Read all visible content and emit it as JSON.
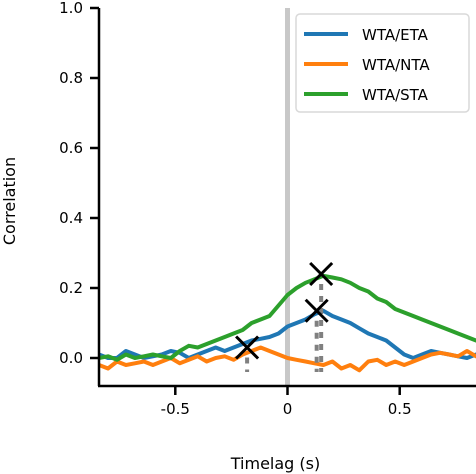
{
  "chart_data": {
    "type": "line",
    "title": "",
    "xlabel": "Timelag (s)",
    "ylabel": "Correlation",
    "xlim": [
      -0.84,
      0.84
    ],
    "ylim": [
      -0.08,
      1.0
    ],
    "xticks": [
      -0.5,
      0,
      0.5
    ],
    "xtick_labels": [
      "-0.5",
      "0",
      "0.5"
    ],
    "yticks": [
      0.0,
      0.2,
      0.4,
      0.6,
      0.8,
      1.0
    ],
    "ytick_labels": [
      "0.0",
      "0.2",
      "0.4",
      "0.6",
      "0.8",
      "1.0"
    ],
    "grid": false,
    "legend_position": "top-right",
    "zero_line": {
      "x": 0,
      "color": "#c8c8c8"
    },
    "series": [
      {
        "name": "WTA/ETA",
        "color": "#1f77b4",
        "x": [
          -0.84,
          -0.8,
          -0.76,
          -0.72,
          -0.68,
          -0.64,
          -0.6,
          -0.56,
          -0.52,
          -0.48,
          -0.44,
          -0.4,
          -0.36,
          -0.32,
          -0.28,
          -0.24,
          -0.2,
          -0.16,
          -0.12,
          -0.08,
          -0.04,
          0.0,
          0.04,
          0.08,
          0.12,
          0.16,
          0.2,
          0.24,
          0.28,
          0.32,
          0.36,
          0.4,
          0.44,
          0.48,
          0.52,
          0.56,
          0.6,
          0.64,
          0.68,
          0.72,
          0.76,
          0.8,
          0.84
        ],
        "y": [
          0.01,
          0.0,
          0.0,
          0.02,
          0.01,
          0.0,
          0.005,
          0.01,
          0.02,
          0.015,
          0.0,
          0.01,
          0.02,
          0.03,
          0.02,
          0.03,
          0.04,
          0.05,
          0.055,
          0.06,
          0.07,
          0.09,
          0.1,
          0.11,
          0.125,
          0.135,
          0.12,
          0.11,
          0.1,
          0.085,
          0.07,
          0.06,
          0.05,
          0.03,
          0.01,
          0.0,
          0.01,
          0.02,
          0.015,
          0.01,
          0.005,
          0.0,
          0.01
        ]
      },
      {
        "name": "WTA/NTA",
        "color": "#ff7f0e",
        "x": [
          -0.84,
          -0.8,
          -0.76,
          -0.72,
          -0.68,
          -0.64,
          -0.6,
          -0.56,
          -0.52,
          -0.48,
          -0.44,
          -0.4,
          -0.36,
          -0.32,
          -0.28,
          -0.24,
          -0.2,
          -0.16,
          -0.12,
          -0.08,
          -0.04,
          0.0,
          0.04,
          0.08,
          0.12,
          0.16,
          0.2,
          0.24,
          0.28,
          0.32,
          0.36,
          0.4,
          0.44,
          0.48,
          0.52,
          0.56,
          0.6,
          0.64,
          0.68,
          0.72,
          0.76,
          0.8,
          0.84
        ],
        "y": [
          -0.02,
          -0.03,
          -0.01,
          -0.02,
          -0.015,
          -0.01,
          -0.02,
          -0.01,
          0.0,
          -0.015,
          -0.005,
          0.005,
          -0.01,
          0.0,
          0.005,
          -0.005,
          0.01,
          0.02,
          0.03,
          0.02,
          0.01,
          0.0,
          -0.005,
          -0.01,
          -0.015,
          -0.02,
          -0.01,
          -0.03,
          -0.02,
          -0.035,
          -0.01,
          -0.005,
          -0.02,
          -0.01,
          -0.02,
          -0.01,
          0.0,
          0.01,
          0.015,
          0.01,
          0.005,
          0.02,
          0.005
        ]
      },
      {
        "name": "WTA/STA",
        "color": "#2ca02c",
        "x": [
          -0.84,
          -0.8,
          -0.76,
          -0.72,
          -0.68,
          -0.64,
          -0.6,
          -0.56,
          -0.52,
          -0.48,
          -0.44,
          -0.4,
          -0.36,
          -0.32,
          -0.28,
          -0.24,
          -0.2,
          -0.16,
          -0.12,
          -0.08,
          -0.04,
          0.0,
          0.04,
          0.08,
          0.12,
          0.16,
          0.2,
          0.24,
          0.28,
          0.32,
          0.36,
          0.4,
          0.44,
          0.48,
          0.52,
          0.56,
          0.6,
          0.64,
          0.68,
          0.72,
          0.76,
          0.8,
          0.84
        ],
        "y": [
          0.0,
          0.005,
          -0.005,
          0.01,
          0.0,
          0.005,
          0.01,
          0.005,
          0.0,
          0.02,
          0.035,
          0.03,
          0.04,
          0.05,
          0.06,
          0.07,
          0.08,
          0.1,
          0.11,
          0.12,
          0.15,
          0.18,
          0.2,
          0.215,
          0.225,
          0.235,
          0.23,
          0.225,
          0.215,
          0.2,
          0.19,
          0.17,
          0.16,
          0.14,
          0.13,
          0.12,
          0.11,
          0.1,
          0.09,
          0.08,
          0.07,
          0.06,
          0.05
        ]
      }
    ],
    "markers": [
      {
        "series": "WTA/ETA",
        "x": 0.13,
        "y": 0.135,
        "symbol": "x",
        "color": "#000000"
      },
      {
        "series": "WTA/NTA",
        "x": -0.18,
        "y": 0.03,
        "symbol": "x",
        "color": "#000000"
      },
      {
        "series": "WTA/STA",
        "x": 0.15,
        "y": 0.24,
        "symbol": "x",
        "color": "#000000"
      }
    ]
  }
}
